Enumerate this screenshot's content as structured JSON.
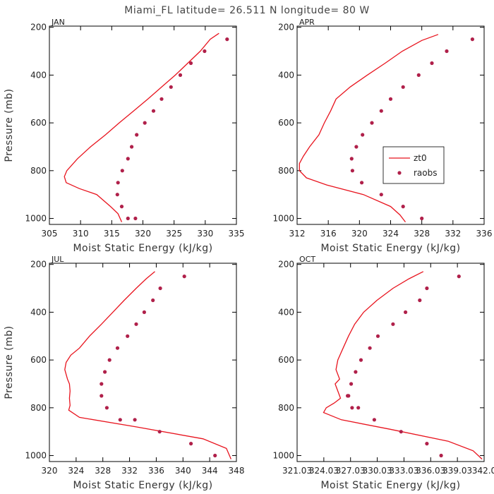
{
  "title": "Miami_FL   latitude= 26.511 N longitude= 80 W",
  "colors": {
    "model": "#e8141e",
    "obs": "#b0204a"
  },
  "legend": {
    "model_label": "zt0",
    "obs_label": "raobs"
  },
  "chart_data": [
    {
      "type": "line",
      "panel": "JAN",
      "xlabel": "Moist Static Energy (kJ/kg)",
      "ylabel": "Pressure (mb)",
      "xlim": [
        305,
        335
      ],
      "xticks": [
        305,
        310,
        315,
        320,
        325,
        330,
        335
      ],
      "xtick_labels": [
        "305",
        "310",
        "315",
        "320",
        "325",
        "330",
        "335"
      ],
      "ylim": [
        1025,
        195
      ],
      "yticks": [
        200,
        400,
        600,
        800,
        1000
      ],
      "ytick_labels": [
        "200",
        "400",
        "600",
        "800",
        "1000"
      ],
      "series": [
        {
          "name": "zt0",
          "style": "line",
          "x": [
            332.2,
            330.8,
            329.2,
            327.2,
            325.2,
            323,
            320.8,
            318.5,
            316.2,
            314,
            311.6,
            309.5,
            307.8,
            307.4,
            307.7,
            309.8,
            312.6,
            314.8,
            316.0,
            316.6
          ],
          "y": [
            225,
            250,
            300,
            350,
            400,
            450,
            500,
            550,
            600,
            650,
            700,
            750,
            800,
            825,
            850,
            875,
            900,
            950,
            980,
            1015
          ]
        },
        {
          "name": "raobs",
          "style": "points",
          "x": [
            333.5,
            329.9,
            327.7,
            326.0,
            324.5,
            323.0,
            321.7,
            320.3,
            319.0,
            318.2,
            317.6,
            316.7,
            316.0,
            315.9,
            316.6,
            317.6,
            318.8
          ],
          "y": [
            250,
            300,
            350,
            400,
            450,
            500,
            550,
            600,
            650,
            700,
            750,
            800,
            850,
            900,
            950,
            1000,
            1000
          ]
        }
      ]
    },
    {
      "type": "line",
      "panel": "APR",
      "xlabel": "Moist Static Energy (kJ/kg)",
      "ylabel": "",
      "xlim": [
        312,
        336
      ],
      "xticks": [
        312,
        316,
        320,
        324,
        328,
        332,
        336
      ],
      "xtick_labels": [
        "312",
        "316",
        "320",
        "324",
        "328",
        "332",
        "336"
      ],
      "ylim": [
        1025,
        195
      ],
      "yticks": [
        200,
        400,
        600,
        800,
        1000
      ],
      "ytick_labels": [
        "200",
        "400",
        "600",
        "800",
        "1000"
      ],
      "legend_position": "right",
      "series": [
        {
          "name": "zt0",
          "style": "line",
          "x": [
            330.1,
            328.0,
            325.5,
            323.3,
            321.0,
            318.8,
            317.0,
            316.3,
            315.5,
            314.8,
            313.6,
            312.8,
            312.3,
            312.3,
            313.2,
            315.8,
            320.5,
            324.0,
            325.2,
            325.9
          ],
          "y": [
            230,
            255,
            300,
            350,
            400,
            450,
            500,
            550,
            600,
            650,
            700,
            740,
            770,
            800,
            830,
            860,
            900,
            950,
            985,
            1015
          ]
        },
        {
          "name": "raobs",
          "style": "points",
          "x": [
            334.5,
            331.2,
            329.3,
            327.6,
            325.6,
            324.0,
            322.8,
            321.6,
            320.4,
            319.6,
            319.0,
            319.1,
            320.3,
            322.8,
            325.6,
            328.0
          ],
          "y": [
            250,
            300,
            350,
            400,
            450,
            500,
            550,
            600,
            650,
            700,
            750,
            800,
            850,
            900,
            950,
            1000
          ]
        }
      ]
    },
    {
      "type": "line",
      "panel": "JUL",
      "xlabel": "Moist Static Energy (kJ/kg)",
      "ylabel": "Pressure (mb)",
      "xlim": [
        320,
        348
      ],
      "xticks": [
        320,
        324,
        328,
        332,
        336,
        340,
        344,
        348
      ],
      "xtick_labels": [
        "320",
        "324",
        "328",
        "332",
        "336",
        "340",
        "344",
        "348"
      ],
      "ylim": [
        1025,
        195
      ],
      "yticks": [
        200,
        400,
        600,
        800,
        1000
      ],
      "ytick_labels": [
        "200",
        "400",
        "600",
        "800",
        "1000"
      ],
      "series": [
        {
          "name": "zt0",
          "style": "line",
          "x": [
            335.8,
            334.5,
            333.0,
            331.2,
            329.5,
            327.8,
            326.0,
            324.5,
            323.2,
            322.5,
            322.3,
            322.7,
            323.0,
            323.1,
            323.0,
            323.1,
            322.9,
            324.5,
            333.0,
            343.0,
            346.5,
            347.2
          ],
          "y": [
            230,
            260,
            300,
            350,
            400,
            450,
            500,
            550,
            580,
            610,
            640,
            680,
            700,
            730,
            760,
            790,
            810,
            840,
            880,
            930,
            970,
            1015
          ]
        },
        {
          "name": "raobs",
          "style": "points",
          "x": [
            340.2,
            336.6,
            335.5,
            334.2,
            333.0,
            331.7,
            330.2,
            329.0,
            328.3,
            327.8,
            327.8,
            328.6,
            330.6,
            332.8,
            336.5,
            341.2,
            344.8
          ],
          "y": [
            250,
            300,
            350,
            400,
            450,
            500,
            550,
            600,
            650,
            700,
            750,
            800,
            850,
            850,
            900,
            950,
            1000
          ]
        }
      ]
    },
    {
      "type": "line",
      "panel": "OCT",
      "xlabel": "Moist Static Energy (kJ/kg)",
      "ylabel": "",
      "xlim": [
        321.03,
        342.03
      ],
      "xticks": [
        321.03,
        324.03,
        327.03,
        330.03,
        333.03,
        336.03,
        339.03,
        342.03
      ],
      "xtick_labels": [
        "321.03",
        "324.03",
        "327.03",
        "330.03",
        "333.03",
        "336.03",
        "339.03",
        "342.0"
      ],
      "ylim": [
        1025,
        195
      ],
      "yticks": [
        200,
        400,
        600,
        800,
        1000
      ],
      "ytick_labels": [
        "200",
        "400",
        "600",
        "800",
        "1000"
      ],
      "series": [
        {
          "name": "zt0",
          "style": "line",
          "x": [
            335.2,
            333.6,
            331.8,
            330.0,
            328.5,
            327.5,
            326.8,
            326.2,
            325.6,
            325.4,
            325.8,
            325.3,
            325.6,
            325.9,
            325.2,
            324.3,
            324.0,
            326.0,
            331.5,
            338.0,
            340.8,
            341.8
          ],
          "y": [
            230,
            260,
            300,
            350,
            400,
            450,
            500,
            550,
            600,
            640,
            680,
            700,
            730,
            760,
            780,
            800,
            820,
            850,
            890,
            940,
            980,
            1015
          ]
        },
        {
          "name": "raobs",
          "style": "points",
          "x": [
            339.2,
            335.6,
            334.8,
            333.2,
            331.8,
            330.1,
            329.2,
            328.2,
            327.6,
            327.1,
            326.8,
            326.7,
            327.2,
            327.9,
            329.7,
            332.7,
            335.6,
            337.2
          ],
          "y": [
            250,
            300,
            350,
            400,
            450,
            500,
            550,
            600,
            650,
            700,
            750,
            750,
            800,
            800,
            850,
            900,
            950,
            1000
          ]
        }
      ]
    }
  ]
}
